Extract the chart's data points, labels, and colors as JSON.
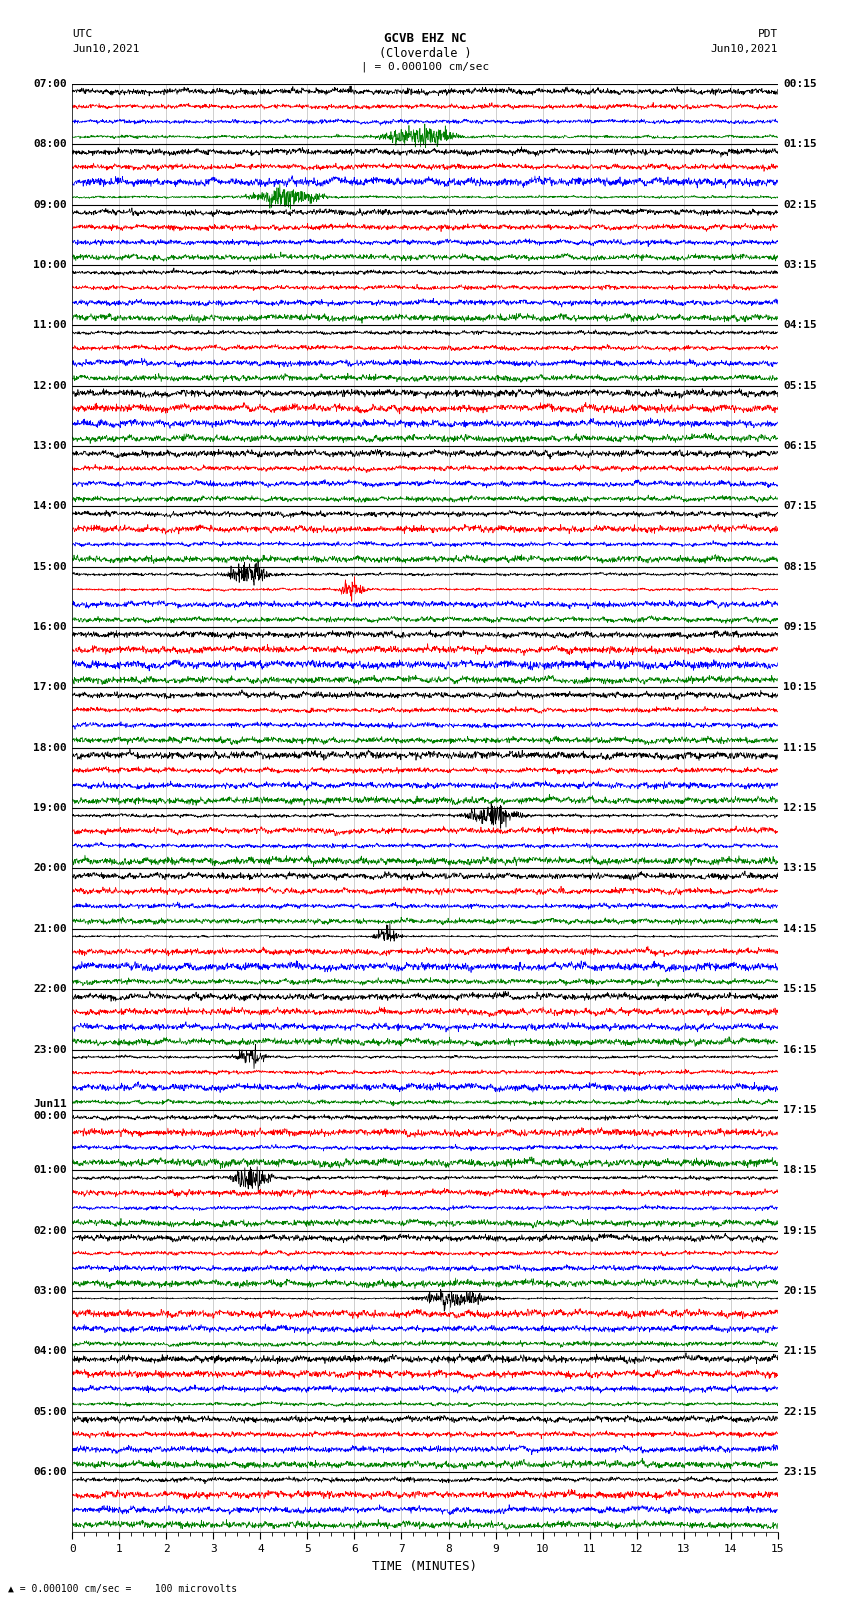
{
  "title_line1": "GCVB EHZ NC",
  "title_line2": "(Cloverdale )",
  "scale_text": "| = 0.000100 cm/sec",
  "left_label_line1": "UTC",
  "left_label_line2": "Jun10,2021",
  "right_label_line1": "PDT",
  "right_label_line2": "Jun10,2021",
  "xlabel": "TIME (MINUTES)",
  "bottom_note": "= 0.000100 cm/sec =    100 microvolts",
  "hour_labels_utc": [
    "07:00",
    "08:00",
    "09:00",
    "10:00",
    "11:00",
    "12:00",
    "13:00",
    "14:00",
    "15:00",
    "16:00",
    "17:00",
    "18:00",
    "19:00",
    "20:00",
    "21:00",
    "22:00",
    "23:00",
    "Jun11\n00:00",
    "01:00",
    "02:00",
    "03:00",
    "04:00",
    "05:00",
    "06:00"
  ],
  "hour_labels_pdt": [
    "00:15",
    "01:15",
    "02:15",
    "03:15",
    "04:15",
    "05:15",
    "06:15",
    "07:15",
    "08:15",
    "09:15",
    "10:15",
    "11:15",
    "12:15",
    "13:15",
    "14:15",
    "15:15",
    "16:15",
    "17:15",
    "18:15",
    "19:15",
    "20:15",
    "21:15",
    "22:15",
    "23:15"
  ],
  "trace_colors_cycle": [
    "black",
    "red",
    "blue",
    "green"
  ],
  "n_hours": 24,
  "n_traces_per_hour": 4,
  "n_points": 2000,
  "x_min": 0,
  "x_max": 15,
  "bg_color": "white",
  "grid_color": "#888888",
  "separator_color": "black",
  "trace_lw": 0.5,
  "label_fontsize": 8,
  "title_fontsize": 9
}
